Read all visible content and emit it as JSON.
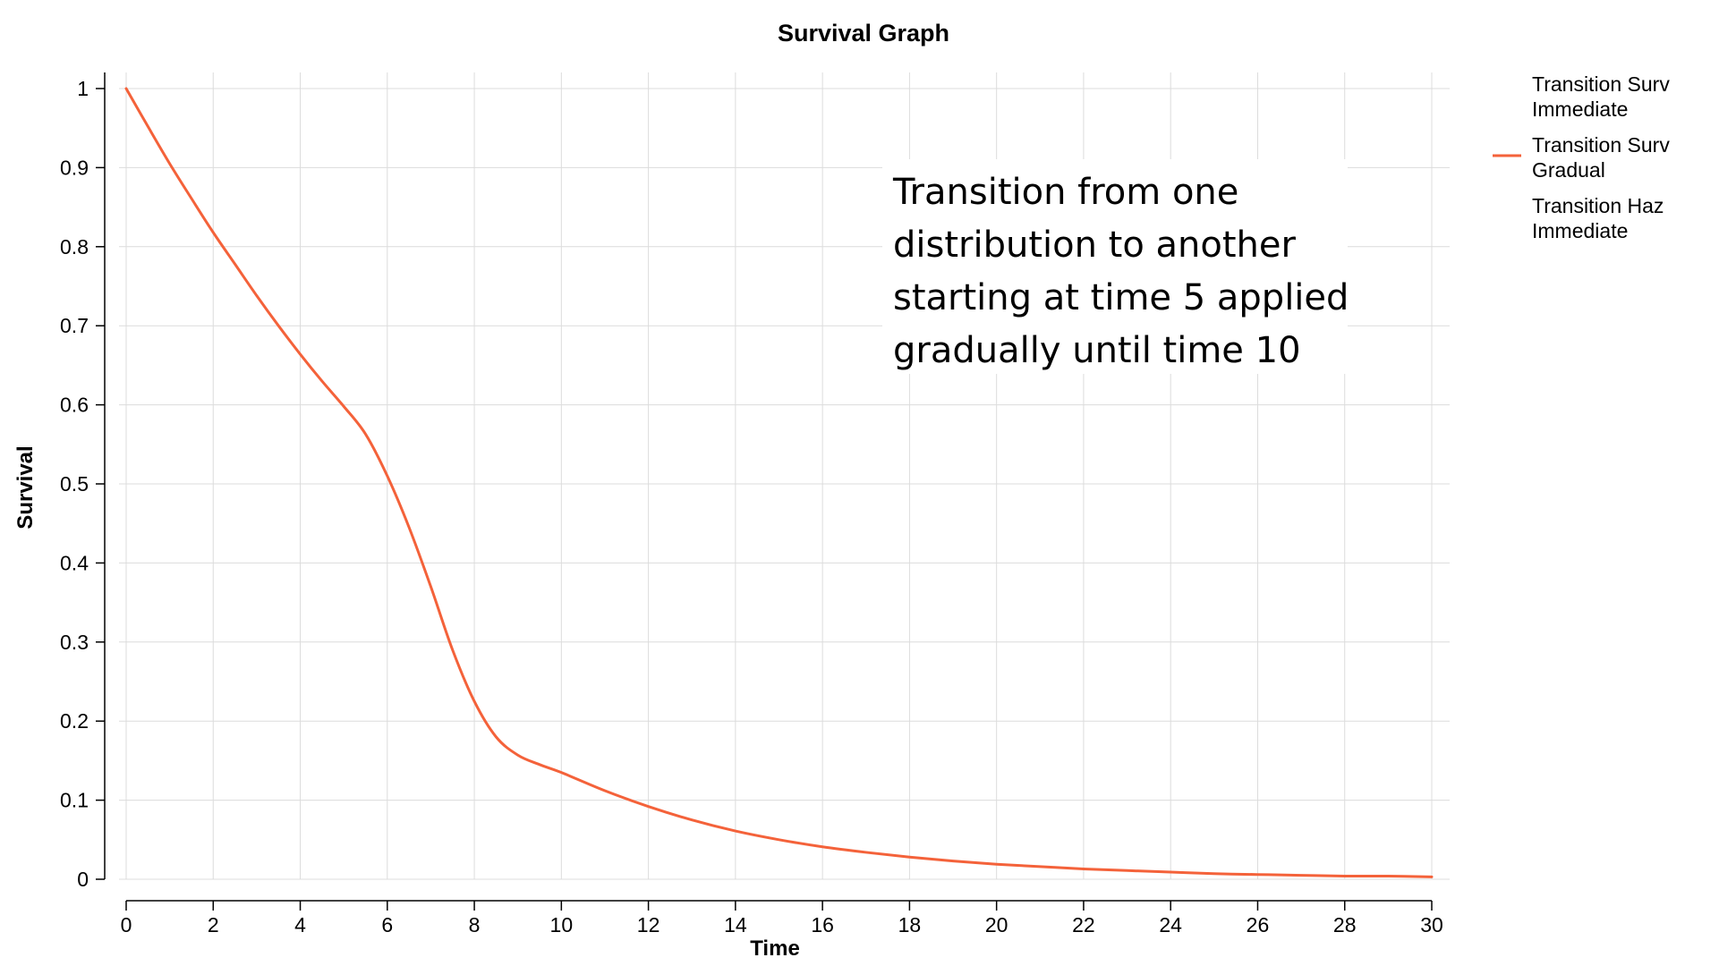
{
  "chart_data": {
    "type": "line",
    "title": "Survival Graph",
    "xlabel": "Time",
    "ylabel": "Survival",
    "xlim": [
      0,
      30
    ],
    "ylim": [
      0,
      1
    ],
    "x_ticks": [
      0,
      2,
      4,
      6,
      8,
      10,
      12,
      14,
      16,
      18,
      20,
      22,
      24,
      26,
      28,
      30
    ],
    "y_ticks": [
      0,
      0.1,
      0.2,
      0.3,
      0.4,
      0.5,
      0.6,
      0.7,
      0.8,
      0.9,
      1
    ],
    "x_tick_labels": [
      "0",
      "2",
      "4",
      "6",
      "8",
      "10",
      "12",
      "14",
      "16",
      "18",
      "20",
      "22",
      "24",
      "26",
      "28",
      "30"
    ],
    "y_tick_labels": [
      "0",
      "0.1",
      "0.2",
      "0.3",
      "0.4",
      "0.5",
      "0.6",
      "0.7",
      "0.8",
      "0.9",
      "1"
    ],
    "grid": true,
    "legend_position": "top-right",
    "legend": [
      {
        "lines": [
          "Transition Surv",
          "Immediate"
        ],
        "color": "",
        "visible_line": false
      },
      {
        "lines": [
          "Transition Surv",
          "Gradual"
        ],
        "color": "#f4623a",
        "visible_line": true
      },
      {
        "lines": [
          "Transition Haz",
          "Immediate"
        ],
        "color": "",
        "visible_line": false
      }
    ],
    "series": [
      {
        "name": "Transition Surv Gradual",
        "color": "#f4623a",
        "x": [
          0,
          0.5,
          1,
          1.5,
          2,
          2.5,
          3,
          3.5,
          4,
          4.5,
          5,
          5.5,
          6,
          6.5,
          7,
          7.5,
          8,
          8.5,
          9,
          9.5,
          10,
          11,
          12,
          13,
          14,
          15,
          16,
          17,
          18,
          19,
          20,
          21,
          22,
          23,
          24,
          25,
          26,
          27,
          28,
          29,
          30
        ],
        "values": [
          1.0,
          0.952,
          0.905,
          0.861,
          0.818,
          0.778,
          0.738,
          0.7,
          0.664,
          0.63,
          0.598,
          0.563,
          0.51,
          0.445,
          0.37,
          0.29,
          0.225,
          0.18,
          0.157,
          0.145,
          0.135,
          0.112,
          0.092,
          0.075,
          0.061,
          0.05,
          0.041,
          0.034,
          0.028,
          0.023,
          0.019,
          0.016,
          0.013,
          0.011,
          0.009,
          0.007,
          0.006,
          0.005,
          0.004,
          0.004,
          0.003
        ]
      }
    ],
    "annotation": {
      "lines": [
        "Transition from one",
        "distribution to another",
        "starting at time 5 applied",
        "gradually until time 10"
      ]
    }
  }
}
